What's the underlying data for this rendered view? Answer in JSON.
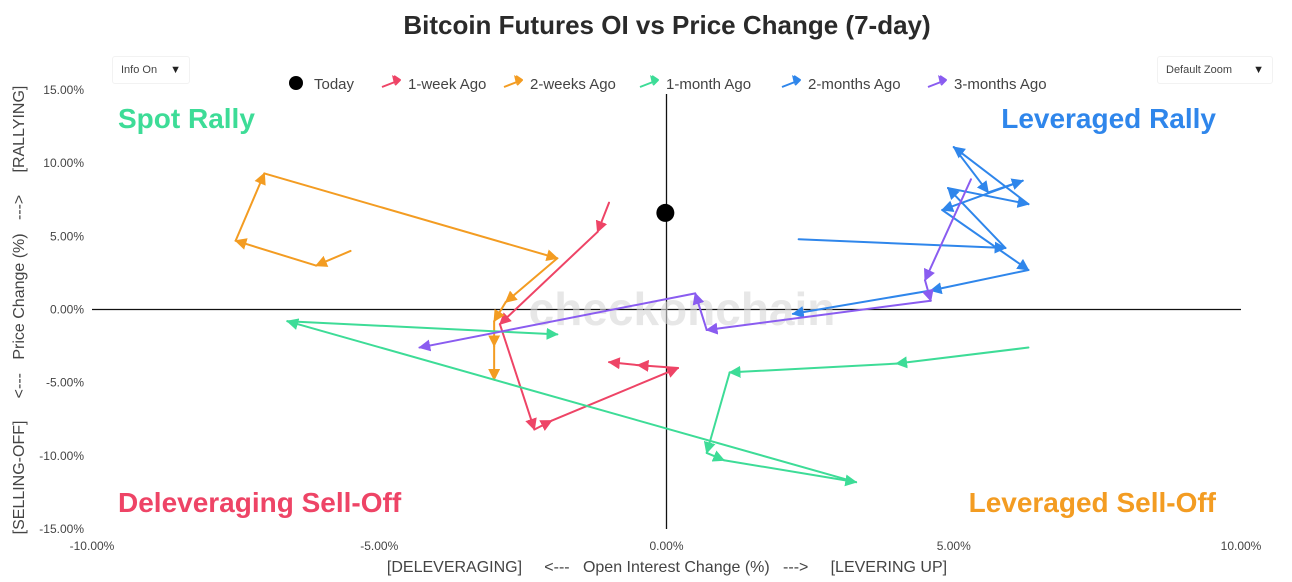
{
  "controls": {
    "info_label": "Info On",
    "zoom_label": "Default Zoom"
  },
  "colors": {
    "today": "#000000",
    "week1": "#ee4466",
    "week2": "#f39c22",
    "month1": "#3ddc97",
    "month2": "#2f86eb",
    "month3": "#8a5cf0",
    "rally_text": "#3ddc97",
    "lev_rally_text": "#2f86eb",
    "delev_text": "#ee4466",
    "lev_selloff_text": "#f39c22",
    "watermark": "#d8d8d8"
  },
  "chart_data": {
    "type": "scatter",
    "title": "Bitcoin Futures OI vs Price Change (7-day)",
    "xlabel": "[DELEVERAGING]     <---   Open Interest Change (%)   --->     [LEVERING UP]",
    "ylabel": "[SELLING-OFF]     <---   Price Change (%)   --->     [RALLYING]",
    "xlim": [
      -10,
      10
    ],
    "ylim": [
      -15,
      15
    ],
    "xticks": [
      -10,
      -5,
      0,
      5,
      10
    ],
    "yticks": [
      15,
      10,
      5,
      0,
      -5,
      -10,
      -15
    ],
    "xtick_labels": [
      "-10.00%",
      "-5.00%",
      "0.00%",
      "5.00%",
      "10.00%"
    ],
    "ytick_labels": [
      "15.00%",
      "10.00%",
      "5.00%",
      "0.00%",
      "-5.00%",
      "-10.00%",
      "-15.00%"
    ],
    "legend_position": "top",
    "watermark": "checkonchain",
    "quadrant_labels": {
      "top_left": "Spot Rally",
      "top_right": "Leveraged Rally",
      "bottom_left": "Deleveraging Sell-Off",
      "bottom_right": "Leveraged Sell-Off"
    },
    "today": {
      "name": "Today",
      "x": -0.02,
      "y": 6.6
    },
    "series": [
      {
        "name": "1-week Ago",
        "color": "#ee4466",
        "x": [
          -1.0,
          -1.2,
          -2.9,
          -2.3,
          -2.0,
          0.2,
          -0.5,
          -1.0
        ],
        "y": [
          7.3,
          5.3,
          -1.0,
          -8.2,
          -7.6,
          -4.0,
          -3.8,
          -3.6
        ]
      },
      {
        "name": "2-weeks Ago",
        "color": "#f39c22",
        "x": [
          -5.5,
          -6.1,
          -7.5,
          -7.0,
          -1.9,
          -2.8,
          -3.0,
          -3.0,
          -3.0
        ],
        "y": [
          4.0,
          3.0,
          4.7,
          9.3,
          3.5,
          0.5,
          -0.8,
          -2.5,
          -4.8
        ]
      },
      {
        "name": "1-month Ago",
        "color": "#3ddc97",
        "x": [
          6.3,
          4.0,
          1.1,
          0.7,
          1.0,
          3.3,
          -6.6,
          -1.9
        ],
        "y": [
          -2.6,
          -3.7,
          -4.3,
          -9.8,
          -10.3,
          -11.8,
          -0.8,
          -1.7
        ]
      },
      {
        "name": "2-months Ago",
        "color": "#2f86eb",
        "x": [
          2.3,
          5.9,
          4.9,
          6.3,
          5.0,
          5.6,
          6.2,
          4.8,
          6.3,
          4.6,
          2.2
        ],
        "y": [
          4.8,
          4.2,
          8.3,
          7.2,
          11.1,
          8.0,
          8.8,
          6.8,
          2.7,
          1.3,
          -0.3
        ]
      },
      {
        "name": "3-months Ago",
        "color": "#8a5cf0",
        "x": [
          5.3,
          4.5,
          4.6,
          0.7,
          0.5,
          0.5,
          -4.3,
          -4.3
        ],
        "y": [
          8.9,
          2.0,
          0.6,
          -1.4,
          1.1,
          1.1,
          -2.6,
          -2.6
        ]
      }
    ]
  }
}
